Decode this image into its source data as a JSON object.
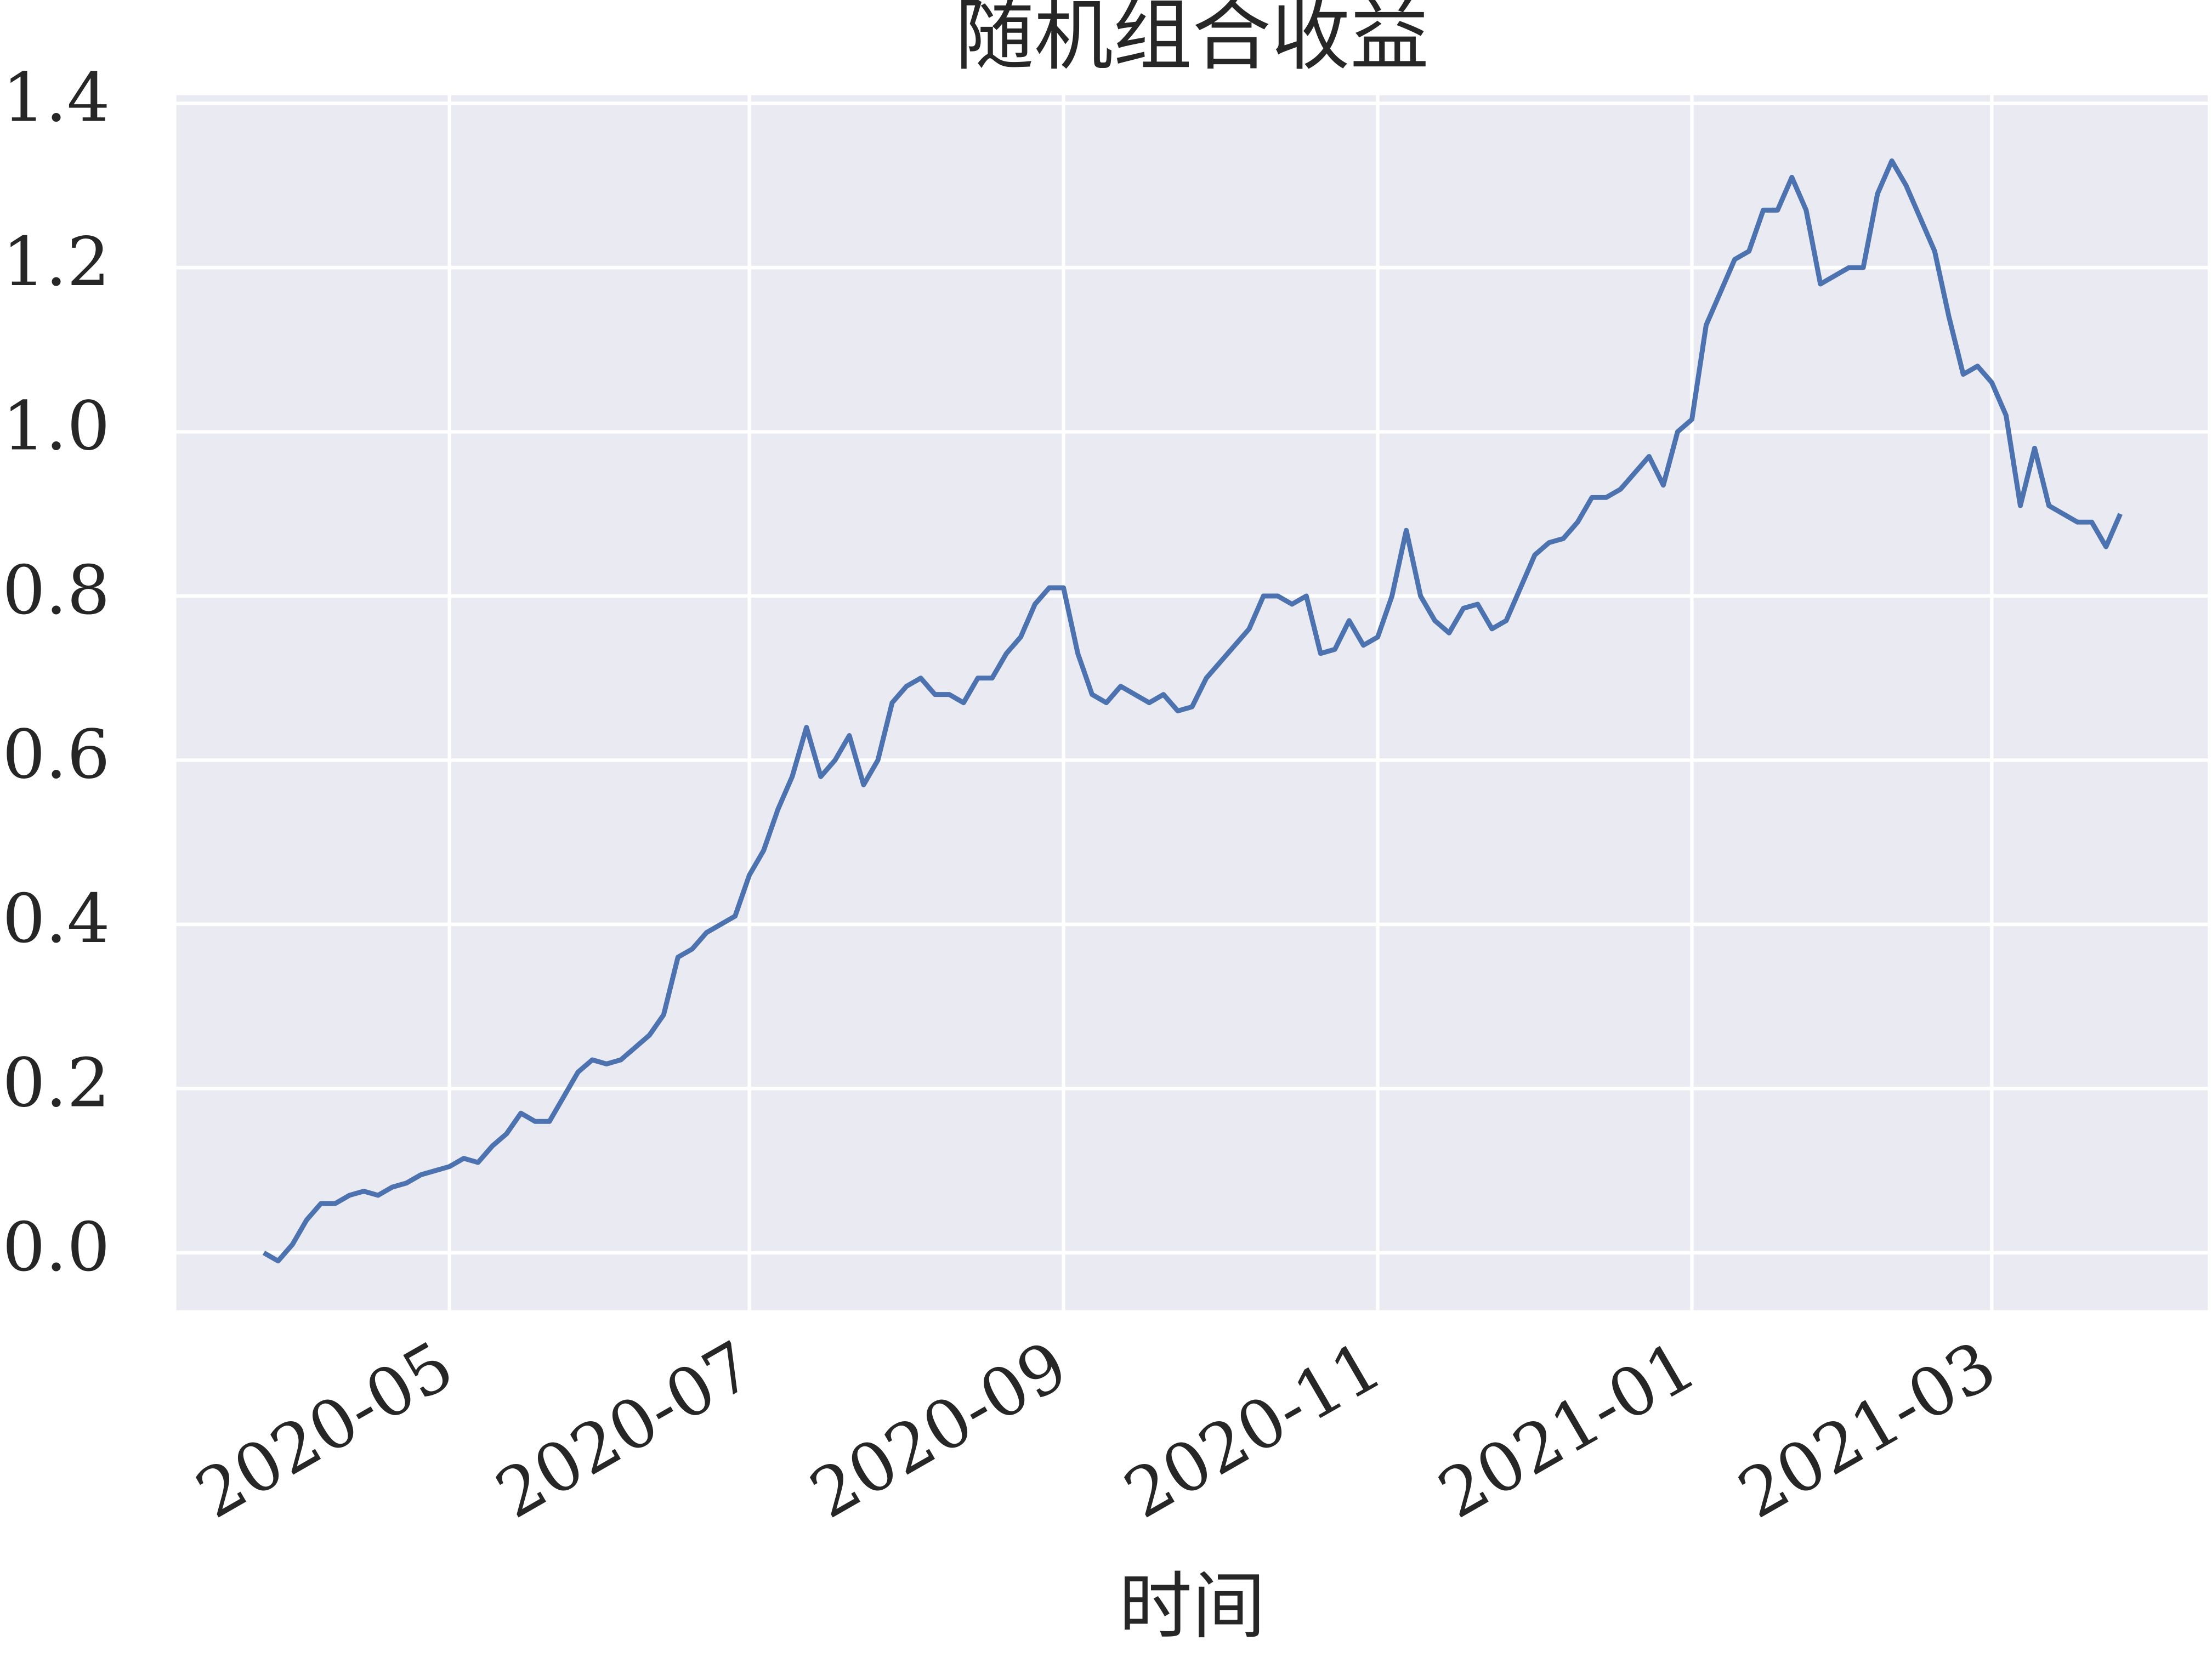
{
  "chart_data": {
    "type": "line",
    "title": "随机组合收益",
    "xlabel": "时间",
    "categories": [
      null,
      null,
      null,
      null,
      null,
      null,
      null,
      null,
      null,
      null,
      null,
      null,
      null,
      "2020-05",
      null,
      null,
      null,
      null,
      null,
      null,
      null,
      null,
      null,
      null,
      null,
      null,
      null,
      null,
      null,
      null,
      null,
      null,
      null,
      null,
      "2020-07",
      null,
      null,
      null,
      null,
      null,
      null,
      null,
      null,
      null,
      null,
      null,
      null,
      null,
      null,
      null,
      null,
      null,
      null,
      null,
      null,
      null,
      "2020-09",
      null,
      null,
      null,
      null,
      null,
      null,
      null,
      null,
      null,
      null,
      null,
      null,
      null,
      null,
      null,
      null,
      null,
      null,
      null,
      null,
      null,
      "2020-11",
      null,
      null,
      null,
      null,
      null,
      null,
      null,
      null,
      null,
      null,
      null,
      null,
      null,
      null,
      null,
      null,
      null,
      null,
      null,
      null,
      null,
      "2021-01",
      null,
      null,
      null,
      null,
      null,
      null,
      null,
      null,
      null,
      null,
      null,
      null,
      null,
      null,
      null,
      null,
      null,
      null,
      null,
      null,
      "2021-03",
      null,
      null,
      null,
      null,
      null,
      null,
      null,
      null,
      null
    ],
    "series": [
      {
        "color": "#4c72b0",
        "values": [
          0.0,
          -0.01,
          0.01,
          0.04,
          0.06,
          0.06,
          0.07,
          0.075,
          0.07,
          0.08,
          0.085,
          0.095,
          0.1,
          0.105,
          0.115,
          0.11,
          0.13,
          0.145,
          0.17,
          0.16,
          0.16,
          0.19,
          0.22,
          0.235,
          0.23,
          0.235,
          0.25,
          0.265,
          0.29,
          0.36,
          0.37,
          0.39,
          0.4,
          0.41,
          0.46,
          0.49,
          0.54,
          0.58,
          0.64,
          0.58,
          0.6,
          0.63,
          0.57,
          0.6,
          0.67,
          0.69,
          0.7,
          0.68,
          0.68,
          0.67,
          0.7,
          0.7,
          0.73,
          0.75,
          0.79,
          0.81,
          0.81,
          0.73,
          0.68,
          0.67,
          0.69,
          0.68,
          0.67,
          0.68,
          0.66,
          0.665,
          0.7,
          0.72,
          0.74,
          0.76,
          0.8,
          0.8,
          0.79,
          0.8,
          0.73,
          0.735,
          0.77,
          0.74,
          0.75,
          0.8,
          0.88,
          0.8,
          0.77,
          0.755,
          0.785,
          0.79,
          0.76,
          0.77,
          0.81,
          0.85,
          0.865,
          0.87,
          0.89,
          0.92,
          0.92,
          0.93,
          0.95,
          0.97,
          0.935,
          1.0,
          1.015,
          1.13,
          1.17,
          1.21,
          1.22,
          1.27,
          1.27,
          1.31,
          1.27,
          1.18,
          1.19,
          1.2,
          1.2,
          1.29,
          1.33,
          1.3,
          1.26,
          1.22,
          1.14,
          1.07,
          1.08,
          1.06,
          1.02,
          0.91,
          0.98,
          0.91,
          0.9,
          0.89,
          0.89,
          0.86,
          0.9
        ]
      }
    ],
    "ylim": [
      -0.07,
      1.41
    ],
    "yticks": [
      {
        "value": 0,
        "label": "0.0"
      },
      {
        "value": 0.2,
        "label": "0.2"
      },
      {
        "value": 0.4,
        "label": "0.4"
      },
      {
        "value": 0.6,
        "label": "0.6"
      },
      {
        "value": 0.8,
        "label": "0.8"
      },
      {
        "value": 1.0,
        "label": "1.0"
      },
      {
        "value": 1.2,
        "label": "1.2"
      },
      {
        "value": 1.4,
        "label": "1.4"
      }
    ],
    "grid": true
  }
}
